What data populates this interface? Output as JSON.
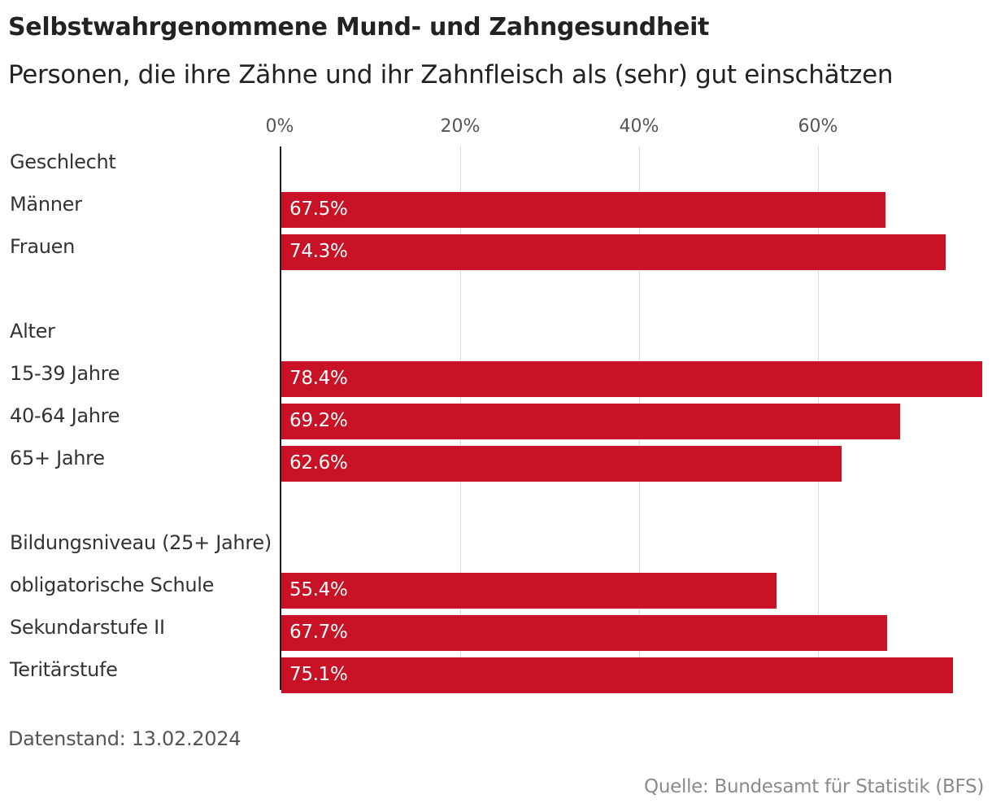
{
  "chart_data": {
    "type": "bar",
    "orientation": "horizontal",
    "title": "Selbstwahrgenommene Mund- und Zahngesundheit",
    "subtitle": "Personen, die ihre Zähne und ihr Zahnfleisch als (sehr) gut einschätzen",
    "xlim": [
      0,
      80
    ],
    "ticks": [
      0,
      20,
      40,
      60
    ],
    "tick_labels": [
      "0%",
      "20%",
      "40%",
      "60%"
    ],
    "groups": [
      {
        "name": "Geschlecht",
        "items": [
          {
            "label": "Männer",
            "value": 67.5,
            "value_label": "67.5%"
          },
          {
            "label": "Frauen",
            "value": 74.3,
            "value_label": "74.3%"
          }
        ]
      },
      {
        "name": "Alter",
        "items": [
          {
            "label": "15-39 Jahre",
            "value": 78.4,
            "value_label": "78.4%"
          },
          {
            "label": "40-64 Jahre",
            "value": 69.2,
            "value_label": "69.2%"
          },
          {
            "label": "65+ Jahre",
            "value": 62.6,
            "value_label": "62.6%"
          }
        ]
      },
      {
        "name": "Bildungsniveau (25+ Jahre)",
        "items": [
          {
            "label": "obligatorische Schule",
            "value": 55.4,
            "value_label": "55.4%"
          },
          {
            "label": "Sekundarstufe II",
            "value": 67.7,
            "value_label": "67.7%"
          },
          {
            "label": "Teritärstufe",
            "value": 75.1,
            "value_label": "75.1%"
          }
        ]
      }
    ],
    "colors": {
      "bar": "#c91226",
      "axis": "#222222",
      "grid": "#dddddd"
    }
  },
  "footer": {
    "note": "Datenstand: 13.02.2024",
    "source": "Quelle: Bundesamt für Statistik (BFS)"
  }
}
